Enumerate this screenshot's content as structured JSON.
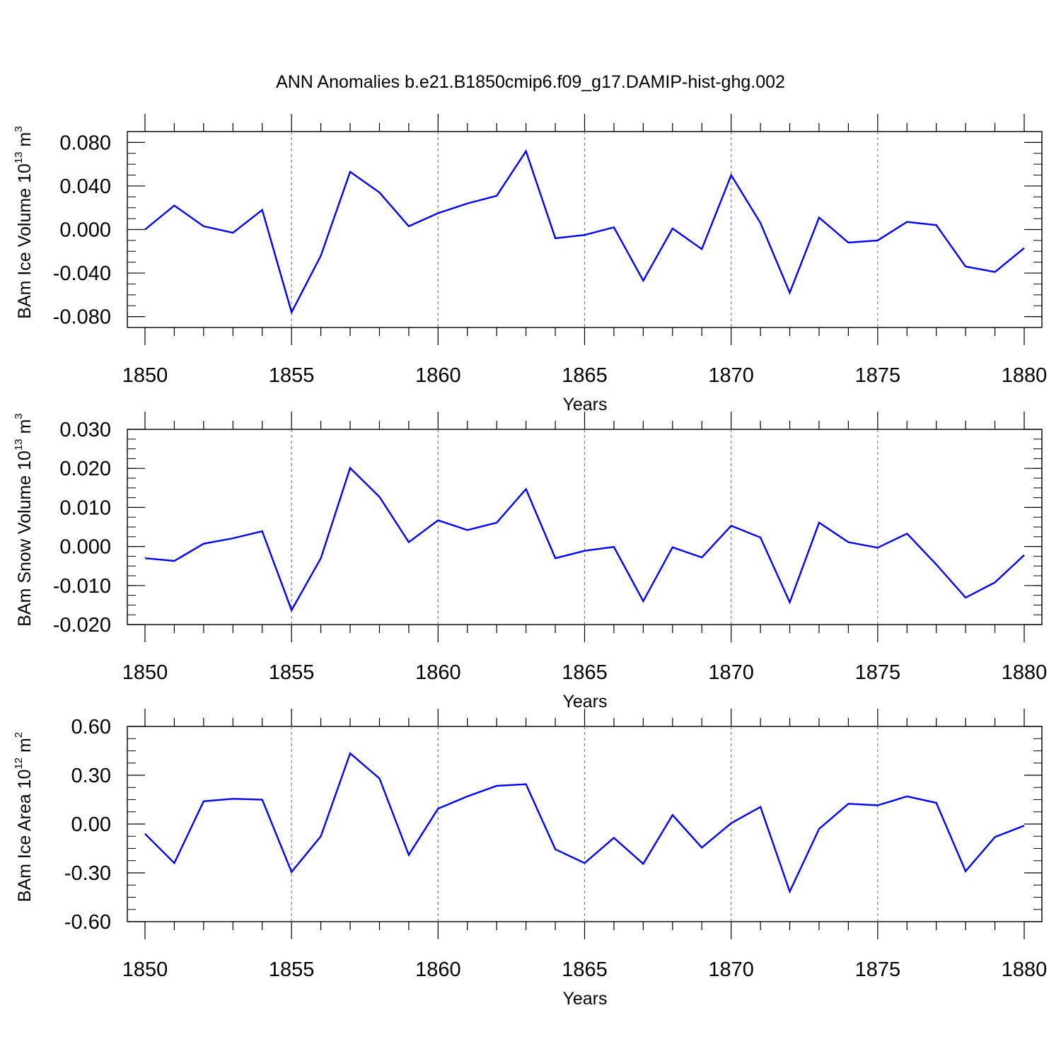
{
  "figure": {
    "title": "ANN Anomalies b.e21.B1850cmip6.f09_g17.DAMIP-hist-ghg.002",
    "line_color": "#0000ff",
    "grid_color": "#808080"
  },
  "chart_data": [
    {
      "type": "line",
      "ylabel": {
        "prefix": "BAm Ice Volume 10",
        "exponent": "13",
        "unit": " m",
        "unit_exponent": "3"
      },
      "xlabel": "Years",
      "xlim": [
        1850,
        1880
      ],
      "ylim": [
        -0.09,
        0.09
      ],
      "xticks": [
        1850,
        1855,
        1860,
        1865,
        1870,
        1875,
        1880
      ],
      "xtick_labels": [
        "1850",
        "1855",
        "1860",
        "1865",
        "1870",
        "1875",
        "1880"
      ],
      "yticks": [
        -0.08,
        -0.04,
        0.0,
        0.04,
        0.08
      ],
      "ytick_labels": [
        "-0.080",
        "-0.040",
        "0.000",
        "0.040",
        "0.080"
      ],
      "grid": "vertical dashed at major x ticks",
      "series": [
        {
          "x": [
            1850,
            1851,
            1852,
            1853,
            1854,
            1855,
            1856,
            1857,
            1858,
            1859,
            1860,
            1861,
            1862,
            1863,
            1864,
            1865,
            1866,
            1867,
            1868,
            1869,
            1870,
            1871,
            1872,
            1873,
            1874,
            1875,
            1876,
            1877,
            1878,
            1879,
            1880
          ],
          "values": [
            0.0,
            0.022,
            0.003,
            -0.003,
            0.018,
            -0.076,
            -0.024,
            0.053,
            0.034,
            0.003,
            0.015,
            0.024,
            0.031,
            0.072,
            -0.008,
            -0.005,
            0.002,
            -0.047,
            0.001,
            -0.018,
            0.05,
            0.006,
            -0.058,
            0.011,
            -0.012,
            -0.01,
            0.007,
            0.004,
            -0.034,
            -0.039,
            -0.017
          ]
        }
      ]
    },
    {
      "type": "line",
      "ylabel": {
        "prefix": "BAm Snow Volume 10",
        "exponent": "13",
        "unit": " m",
        "unit_exponent": "3"
      },
      "xlabel": "Years",
      "xlim": [
        1850,
        1880
      ],
      "ylim": [
        -0.02,
        0.03
      ],
      "xticks": [
        1850,
        1855,
        1860,
        1865,
        1870,
        1875,
        1880
      ],
      "xtick_labels": [
        "1850",
        "1855",
        "1860",
        "1865",
        "1870",
        "1875",
        "1880"
      ],
      "yticks": [
        -0.02,
        -0.01,
        0.0,
        0.01,
        0.02,
        0.03
      ],
      "ytick_labels": [
        "-0.020",
        "-0.010",
        "0.000",
        "0.010",
        "0.020",
        "0.030"
      ],
      "grid": "vertical dashed at major x ticks",
      "series": [
        {
          "x": [
            1850,
            1851,
            1852,
            1853,
            1854,
            1855,
            1856,
            1857,
            1858,
            1859,
            1860,
            1861,
            1862,
            1863,
            1864,
            1865,
            1866,
            1867,
            1868,
            1869,
            1870,
            1871,
            1872,
            1873,
            1874,
            1875,
            1876,
            1877,
            1878,
            1879,
            1880
          ],
          "values": [
            -0.003,
            -0.0037,
            0.0007,
            0.0021,
            0.0039,
            -0.0163,
            -0.003,
            0.0201,
            0.0127,
            0.0011,
            0.0067,
            0.0042,
            0.0061,
            0.0147,
            -0.003,
            -0.0011,
            -0.0001,
            -0.014,
            -0.0002,
            -0.0028,
            0.0053,
            0.0023,
            -0.0143,
            0.0061,
            0.0011,
            -0.0003,
            0.0033,
            -0.0046,
            -0.0131,
            -0.0092,
            -0.0022
          ]
        }
      ]
    },
    {
      "type": "line",
      "ylabel": {
        "prefix": "BAm Ice Area 10",
        "exponent": "12",
        "unit": " m",
        "unit_exponent": "2"
      },
      "xlabel": "Years",
      "xlim": [
        1850,
        1880
      ],
      "ylim": [
        -0.6,
        0.6
      ],
      "xticks": [
        1850,
        1855,
        1860,
        1865,
        1870,
        1875,
        1880
      ],
      "xtick_labels": [
        "1850",
        "1855",
        "1860",
        "1865",
        "1870",
        "1875",
        "1880"
      ],
      "yticks": [
        -0.6,
        -0.3,
        0.0,
        0.3,
        0.6
      ],
      "ytick_labels": [
        "-0.60",
        "-0.30",
        "0.00",
        "0.30",
        "0.60"
      ],
      "grid": "vertical dashed at major x ticks",
      "series": [
        {
          "x": [
            1850,
            1851,
            1852,
            1853,
            1854,
            1855,
            1856,
            1857,
            1858,
            1859,
            1860,
            1861,
            1862,
            1863,
            1864,
            1865,
            1866,
            1867,
            1868,
            1869,
            1870,
            1871,
            1872,
            1873,
            1874,
            1875,
            1876,
            1877,
            1878,
            1879,
            1880
          ],
          "values": [
            -0.06,
            -0.24,
            0.14,
            0.155,
            0.15,
            -0.295,
            -0.075,
            0.435,
            0.28,
            -0.19,
            0.095,
            0.17,
            0.235,
            0.245,
            -0.155,
            -0.24,
            -0.085,
            -0.245,
            0.055,
            -0.145,
            0.005,
            0.105,
            -0.415,
            -0.03,
            0.125,
            0.115,
            0.17,
            0.13,
            -0.29,
            -0.08,
            -0.01
          ]
        }
      ]
    }
  ]
}
